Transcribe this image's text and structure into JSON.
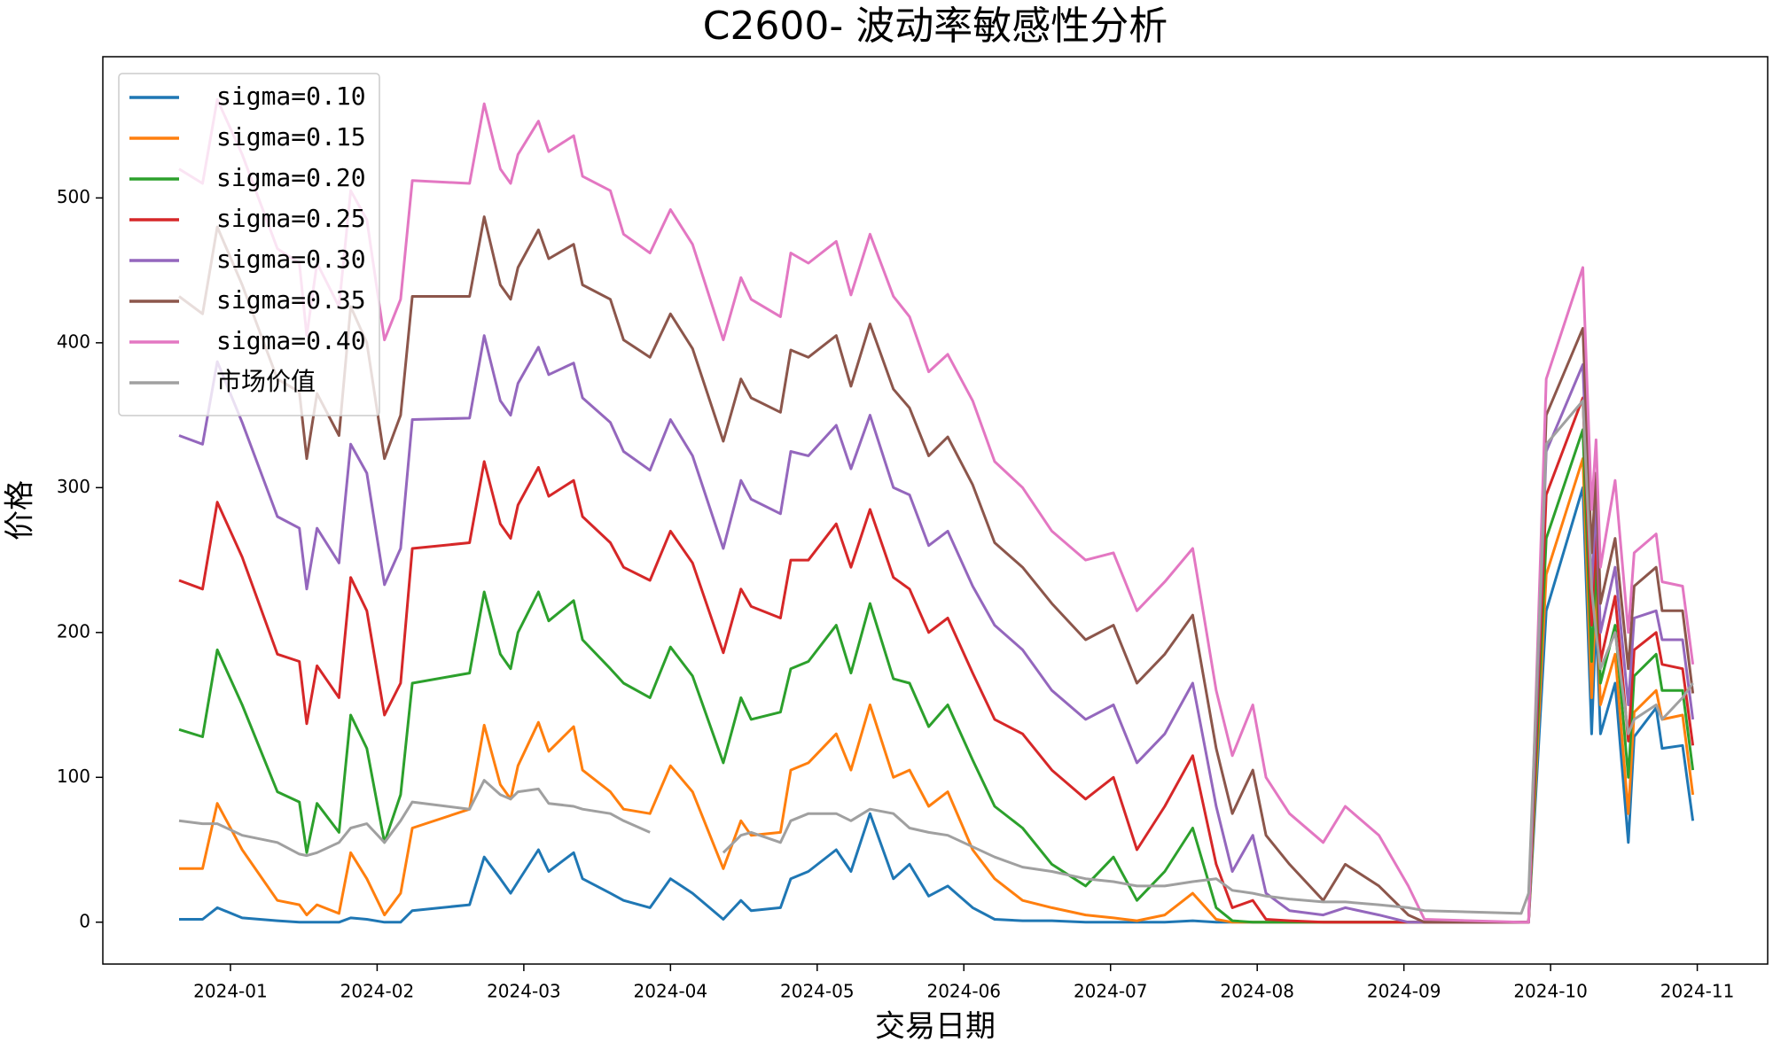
{
  "chart_data": {
    "type": "line",
    "title": "C2600- 波动率敏感性分析",
    "xlabel": "交易日期",
    "ylabel": "价格",
    "legend": "upper left",
    "grid": false,
    "x": [
      0.65,
      0.81,
      0.91,
      1.08,
      1.32,
      1.47,
      1.52,
      1.59,
      1.74,
      1.82,
      1.93,
      2.05,
      2.16,
      2.24,
      2.63,
      2.73,
      2.84,
      2.91,
      2.96,
      3.1,
      3.17,
      3.34,
      3.4,
      3.59,
      3.68,
      3.86,
      4.0,
      4.15,
      4.36,
      4.48,
      4.55,
      4.75,
      4.82,
      4.94,
      5.13,
      5.23,
      5.36,
      5.52,
      5.63,
      5.76,
      5.89,
      6.06,
      6.21,
      6.4,
      6.6,
      6.83,
      7.02,
      7.18,
      7.37,
      7.56,
      7.72,
      7.83,
      7.97,
      8.06,
      8.22,
      8.45,
      8.6,
      8.83,
      9.03,
      9.14,
      9.8,
      9.85,
      9.97,
      10.22,
      10.28,
      10.31,
      10.34,
      10.44,
      10.53,
      10.57,
      10.72,
      10.76,
      10.9,
      10.97
    ],
    "xlim": [
      0.13,
      11.48
    ],
    "xticks": [
      {
        "value": 1,
        "label": "2024-01"
      },
      {
        "value": 2,
        "label": "2024-02"
      },
      {
        "value": 3,
        "label": "2024-03"
      },
      {
        "value": 4,
        "label": "2024-04"
      },
      {
        "value": 5,
        "label": "2024-05"
      },
      {
        "value": 6,
        "label": "2024-06"
      },
      {
        "value": 7,
        "label": "2024-07"
      },
      {
        "value": 8,
        "label": "2024-08"
      },
      {
        "value": 9,
        "label": "2024-09"
      },
      {
        "value": 10,
        "label": "2024-10"
      },
      {
        "value": 11,
        "label": "2024-11"
      }
    ],
    "ylim": [
      -28.9,
      597.5
    ],
    "yticks": [
      0,
      100,
      200,
      300,
      400,
      500
    ],
    "series": [
      {
        "name": "sigma=0.10",
        "color": "#1f77b4",
        "values": [
          2,
          2,
          10,
          3,
          1,
          0,
          0,
          0,
          0,
          3,
          2,
          0,
          0,
          8,
          12,
          45,
          30,
          20,
          28,
          50,
          35,
          48,
          30,
          20,
          15,
          10,
          30,
          20,
          2,
          15,
          8,
          10,
          30,
          35,
          50,
          35,
          75,
          30,
          40,
          18,
          25,
          10,
          2,
          1,
          1,
          0,
          0,
          0,
          0,
          1,
          0,
          0,
          0,
          0,
          0,
          0,
          0,
          0,
          0,
          0,
          0,
          0,
          215,
          300,
          130,
          210,
          130,
          165,
          55,
          128,
          148,
          120,
          122,
          70
        ]
      },
      {
        "name": "sigma=0.15",
        "color": "#ff7f0e",
        "values": [
          37,
          37,
          82,
          50,
          15,
          12,
          5,
          12,
          6,
          48,
          30,
          5,
          20,
          65,
          78,
          136,
          95,
          85,
          108,
          138,
          118,
          135,
          105,
          90,
          78,
          75,
          108,
          90,
          37,
          70,
          60,
          62,
          105,
          110,
          130,
          105,
          150,
          100,
          105,
          80,
          90,
          50,
          30,
          15,
          10,
          5,
          3,
          1,
          5,
          20,
          2,
          0,
          0,
          0,
          0,
          0,
          0,
          0,
          0,
          0,
          0,
          0,
          240,
          320,
          155,
          230,
          150,
          185,
          75,
          145,
          160,
          140,
          143,
          88
        ]
      },
      {
        "name": "sigma=0.20",
        "color": "#2ca02c",
        "values": [
          133,
          128,
          188,
          150,
          90,
          83,
          48,
          82,
          62,
          143,
          120,
          55,
          88,
          165,
          172,
          228,
          185,
          175,
          200,
          228,
          208,
          222,
          195,
          175,
          165,
          155,
          190,
          170,
          110,
          155,
          140,
          145,
          175,
          180,
          205,
          172,
          220,
          168,
          165,
          135,
          150,
          112,
          80,
          65,
          40,
          25,
          45,
          15,
          35,
          65,
          10,
          1,
          0,
          0,
          0,
          0,
          0,
          0,
          0,
          0,
          0,
          0,
          265,
          340,
          180,
          250,
          165,
          205,
          100,
          170,
          185,
          160,
          160,
          105
        ]
      },
      {
        "name": "sigma=0.25",
        "color": "#d62728",
        "values": [
          236,
          230,
          290,
          252,
          185,
          180,
          137,
          177,
          155,
          238,
          215,
          143,
          165,
          258,
          262,
          318,
          275,
          265,
          288,
          314,
          294,
          305,
          280,
          262,
          245,
          236,
          270,
          248,
          186,
          230,
          218,
          210,
          250,
          250,
          275,
          245,
          285,
          238,
          230,
          200,
          210,
          172,
          140,
          130,
          105,
          85,
          100,
          50,
          80,
          115,
          40,
          10,
          15,
          2,
          1,
          0,
          0,
          0,
          0,
          0,
          0,
          0,
          295,
          362,
          205,
          270,
          180,
          225,
          125,
          188,
          200,
          178,
          175,
          122
        ]
      },
      {
        "name": "sigma=0.30",
        "color": "#9467bd",
        "values": [
          336,
          330,
          387,
          345,
          280,
          272,
          230,
          272,
          248,
          330,
          310,
          233,
          258,
          347,
          348,
          405,
          360,
          350,
          372,
          397,
          378,
          386,
          362,
          345,
          325,
          312,
          347,
          322,
          258,
          305,
          292,
          282,
          325,
          322,
          343,
          313,
          350,
          300,
          295,
          260,
          270,
          232,
          205,
          188,
          160,
          140,
          150,
          110,
          130,
          165,
          80,
          35,
          60,
          20,
          8,
          5,
          10,
          5,
          0,
          0,
          0,
          0,
          325,
          385,
          230,
          290,
          200,
          245,
          150,
          210,
          215,
          195,
          195,
          140
        ]
      },
      {
        "name": "sigma=0.35",
        "color": "#8c564b",
        "values": [
          432,
          420,
          480,
          440,
          375,
          366,
          320,
          365,
          336,
          425,
          400,
          320,
          350,
          432,
          432,
          487,
          440,
          430,
          452,
          478,
          458,
          468,
          440,
          430,
          402,
          390,
          420,
          396,
          332,
          375,
          362,
          352,
          395,
          390,
          405,
          370,
          413,
          368,
          355,
          322,
          335,
          302,
          262,
          245,
          220,
          195,
          205,
          165,
          185,
          212,
          120,
          75,
          105,
          60,
          40,
          15,
          40,
          25,
          5,
          0,
          0,
          0,
          350,
          410,
          255,
          310,
          220,
          265,
          175,
          232,
          245,
          215,
          215,
          158
        ]
      },
      {
        "name": "sigma=0.40",
        "color": "#e377c2",
        "values": [
          520,
          510,
          568,
          530,
          465,
          455,
          405,
          455,
          425,
          505,
          485,
          402,
          430,
          512,
          510,
          565,
          520,
          510,
          530,
          553,
          532,
          543,
          515,
          505,
          475,
          462,
          492,
          468,
          402,
          445,
          430,
          418,
          462,
          455,
          470,
          433,
          475,
          432,
          418,
          380,
          392,
          360,
          318,
          300,
          270,
          250,
          255,
          215,
          235,
          258,
          160,
          115,
          150,
          100,
          75,
          55,
          80,
          60,
          25,
          2,
          0,
          0,
          375,
          452,
          285,
          333,
          245,
          305,
          200,
          255,
          268,
          235,
          232,
          178
        ]
      },
      {
        "name": "市场价值",
        "color": "#a0a0a0",
        "values": [
          70,
          68,
          68,
          60,
          55,
          47,
          46,
          48,
          55,
          65,
          68,
          55,
          70,
          83,
          78,
          98,
          88,
          85,
          90,
          92,
          82,
          80,
          78,
          75,
          70,
          62,
          null,
          null,
          48,
          60,
          62,
          55,
          70,
          75,
          75,
          70,
          78,
          75,
          65,
          62,
          60,
          52,
          45,
          38,
          35,
          30,
          28,
          25,
          25,
          28,
          30,
          22,
          20,
          18,
          16,
          14,
          14,
          12,
          10,
          8,
          6,
          20,
          330,
          360,
          230,
          200,
          175,
          200,
          130,
          140,
          150,
          140,
          155,
          165
        ]
      }
    ]
  }
}
